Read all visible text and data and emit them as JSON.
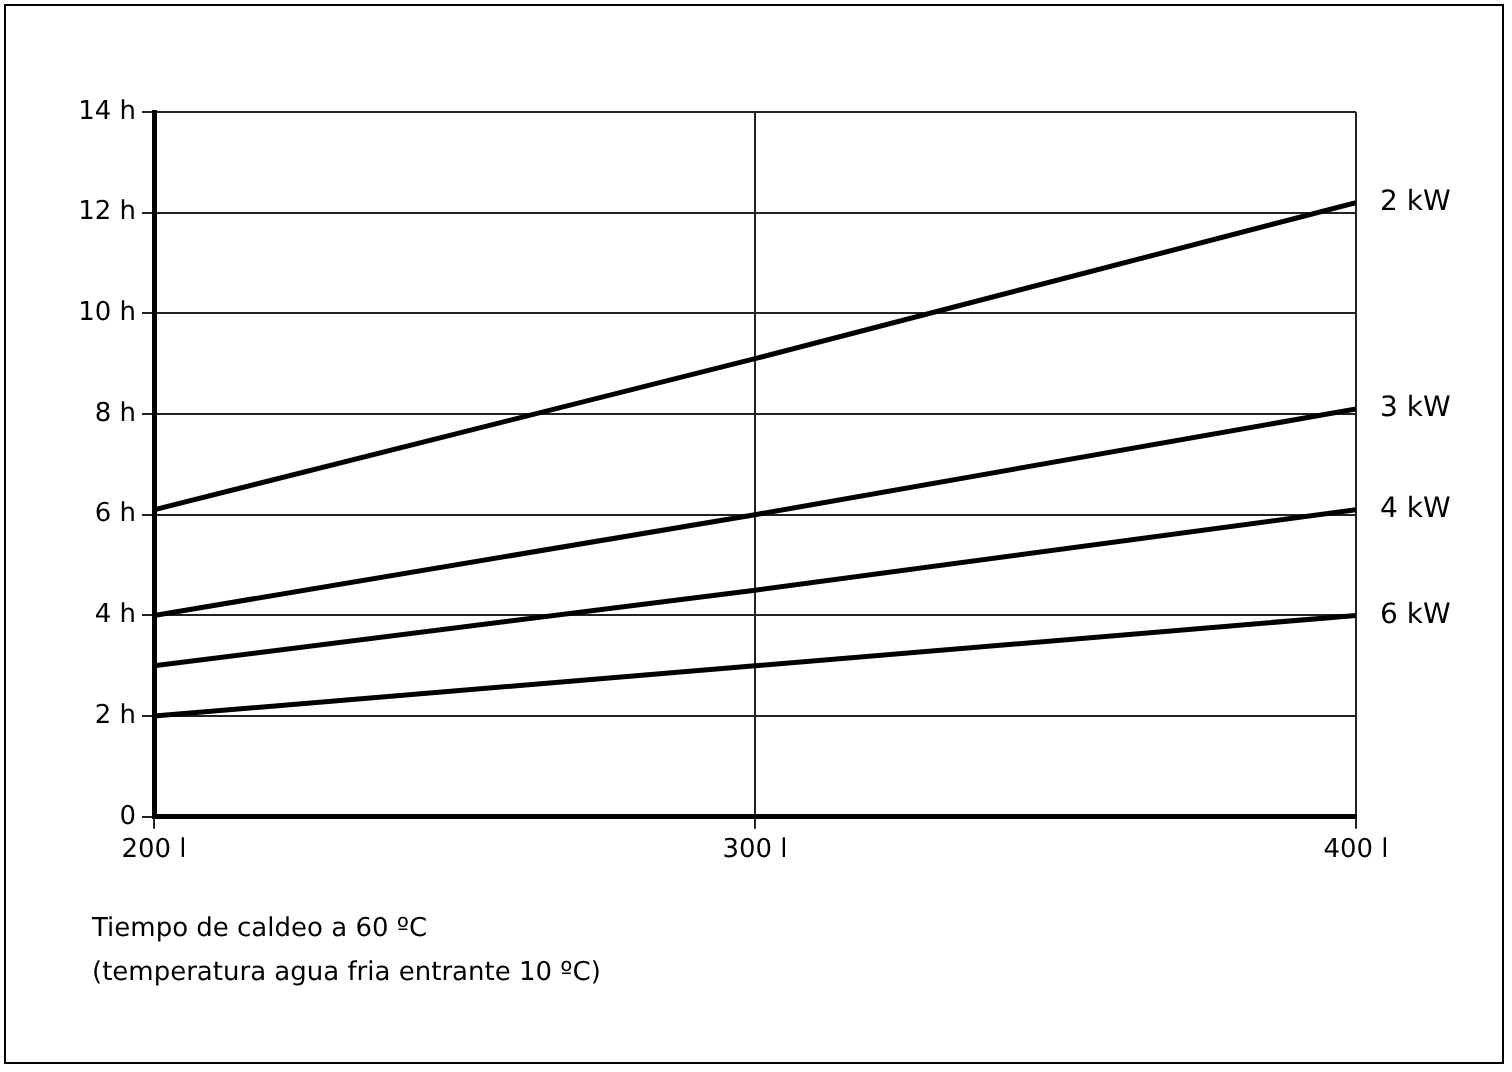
{
  "chart_data": {
    "type": "line",
    "x": [
      200,
      300,
      400
    ],
    "series": [
      {
        "name": "2 kW",
        "color": "#000000",
        "values": [
          6.1,
          9.1,
          12.2
        ]
      },
      {
        "name": "3 kW",
        "color": "#000000",
        "values": [
          4,
          6,
          8.1
        ]
      },
      {
        "name": "4 kW",
        "color": "#000000",
        "values": [
          3,
          4.5,
          6.1
        ]
      },
      {
        "name": "6 kW",
        "color": "#000000",
        "values": [
          2,
          3,
          4
        ]
      }
    ],
    "xlim": [
      200,
      400
    ],
    "xticks": [
      {
        "value": 200,
        "label": "200 l"
      },
      {
        "value": 300,
        "label": "300 l"
      },
      {
        "value": 400,
        "label": "400 l"
      }
    ],
    "ylim": [
      0,
      14
    ],
    "yticks": [
      0,
      {
        "value": 2,
        "label": "2 h"
      },
      {
        "value": 4,
        "label": "4 h"
      },
      {
        "value": 6,
        "label": "6 h"
      },
      {
        "value": 8,
        "label": "8 h"
      },
      {
        "value": 10,
        "label": "10 h"
      },
      {
        "value": 12,
        "label": "12 h"
      },
      {
        "value": 14,
        "label": "14 h"
      }
    ],
    "grid": true,
    "legend": false,
    "marker": "none",
    "line_style": "solid",
    "annotations": [
      "Tiempo de caldeo a 60 ºC",
      "(temperatura agua fria entrante 10 ºC)"
    ]
  }
}
